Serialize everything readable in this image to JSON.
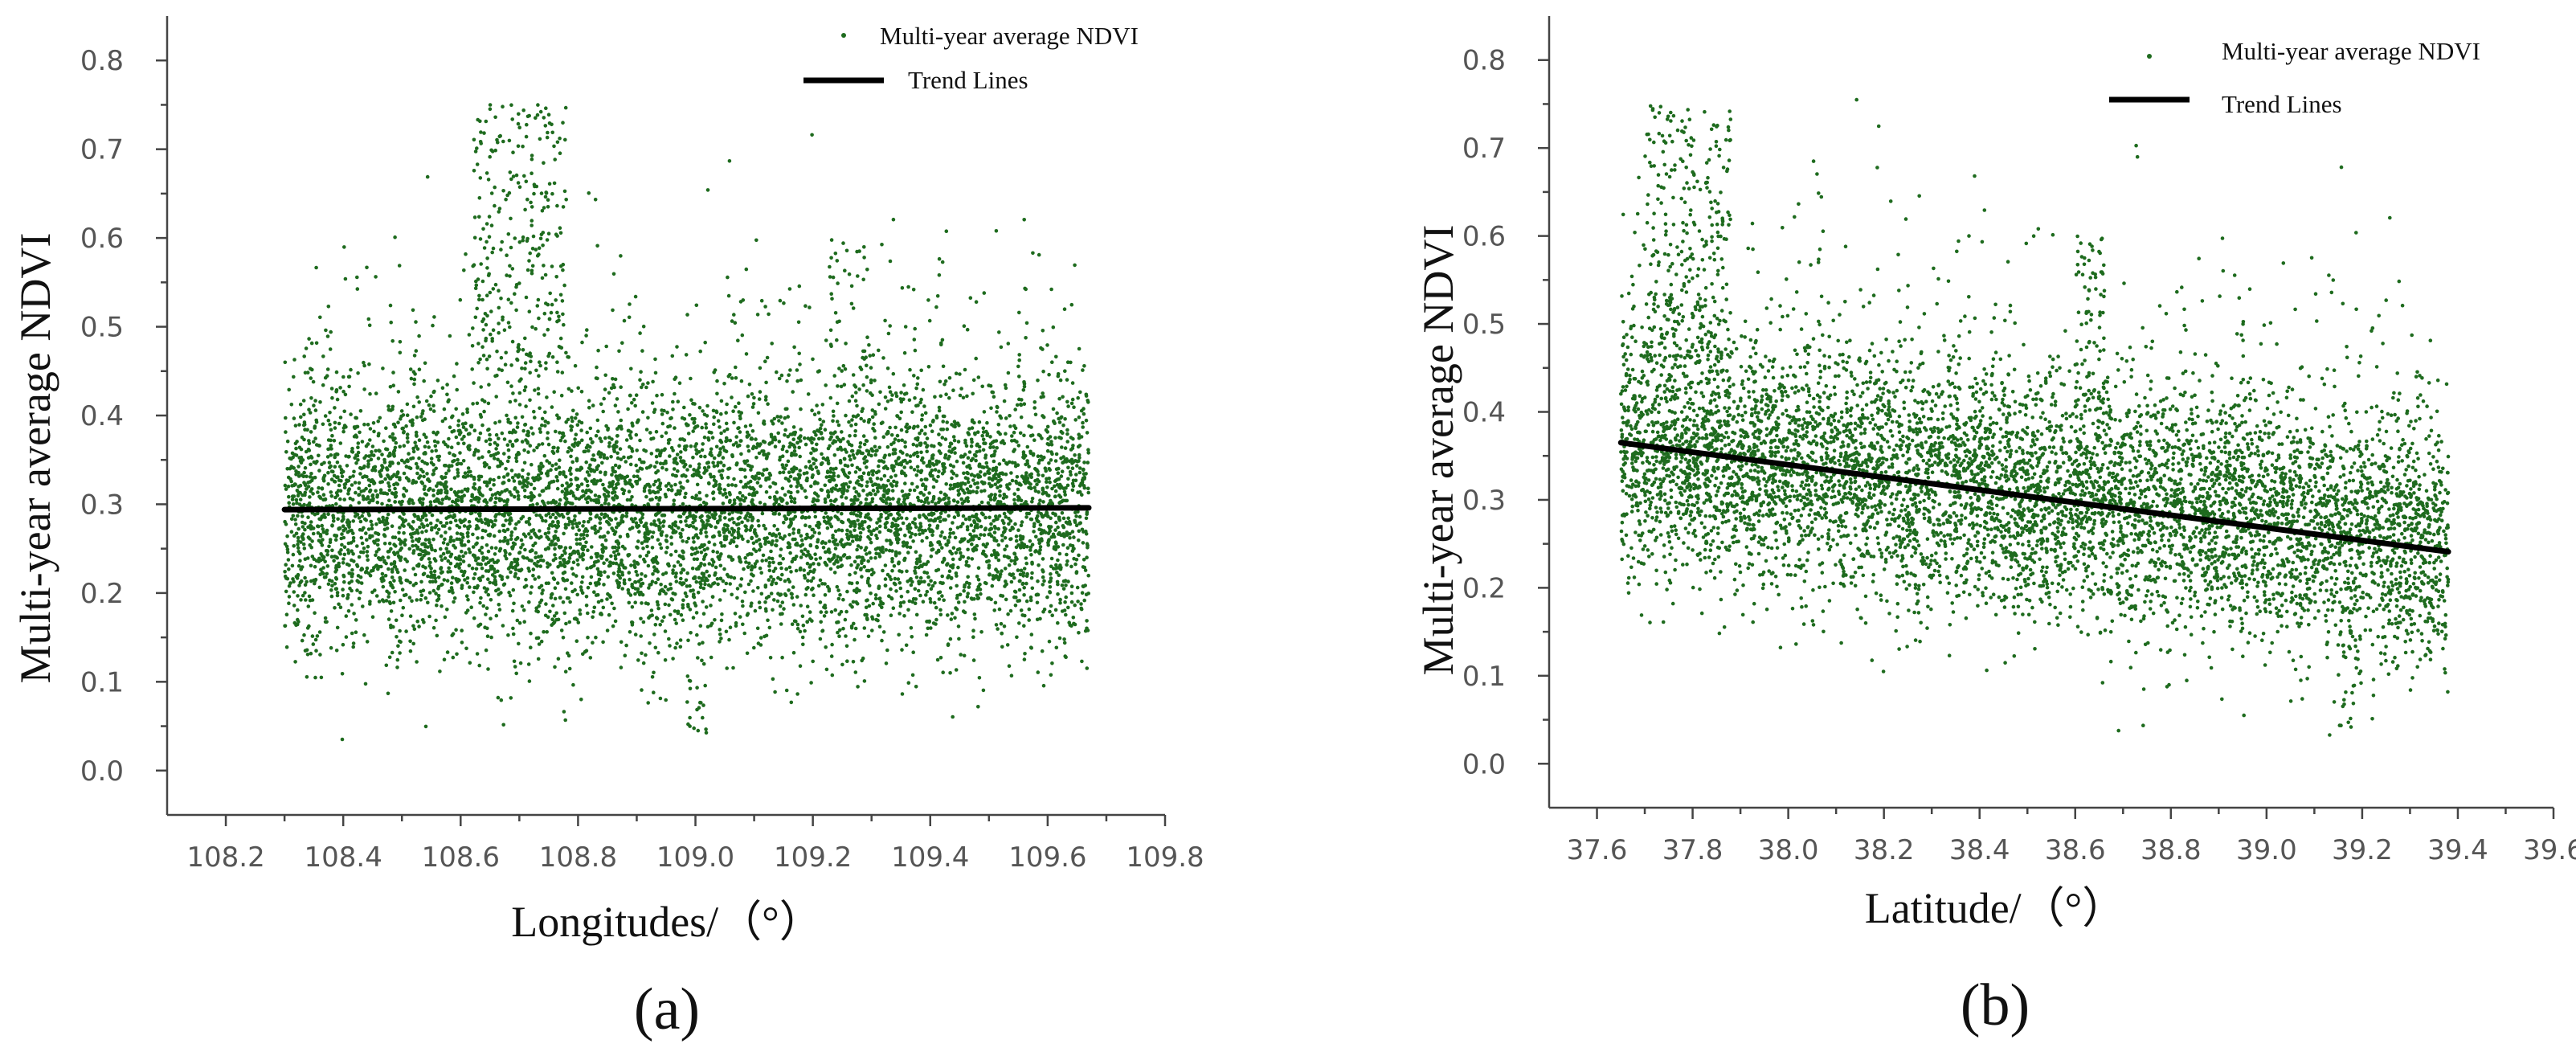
{
  "colors": {
    "points": "#1e6b1e",
    "trend": "#000000",
    "axis": "#444444"
  },
  "chart_data": [
    {
      "type": "scatter",
      "panel_label": "(a)",
      "title": "",
      "xlabel": "Longitudes/（°）",
      "ylabel": "Multi-year average NDVI",
      "xlim": [
        108.1,
        109.8
      ],
      "ylim": [
        -0.05,
        0.85
      ],
      "xticks": [
        "108.2",
        "108.4",
        "108.6",
        "108.8",
        "109.0",
        "109.2",
        "109.4",
        "109.6",
        "109.8"
      ],
      "yticks": [
        "0.0",
        "0.1",
        "0.2",
        "0.3",
        "0.4",
        "0.5",
        "0.6",
        "0.7",
        "0.8"
      ],
      "legend": {
        "position": "top-right",
        "points_label": "Multi-year average NDVI",
        "line_label": "Trend Lines"
      },
      "series": [
        {
          "name": "Multi-year average NDVI",
          "kind": "points",
          "x_range": [
            108.3,
            109.67
          ],
          "mean": 0.29,
          "spread": 0.075,
          "count": 7000,
          "hotspots": [
            {
              "x": [
                108.62,
                108.78
              ],
              "y": [
                0.45,
                0.75
              ],
              "n": 260
            },
            {
              "x": [
                109.22,
                109.3
              ],
              "y": [
                0.1,
                0.6
              ],
              "n": 120
            },
            {
              "x": [
                108.98,
                109.02
              ],
              "y": [
                0.04,
                0.12
              ],
              "n": 18
            }
          ]
        },
        {
          "name": "Trend Lines",
          "kind": "line",
          "x": [
            108.3,
            109.67
          ],
          "y": [
            0.294,
            0.296
          ]
        }
      ]
    },
    {
      "type": "scatter",
      "panel_label": "(b)",
      "title": "",
      "xlabel": "Latitude/（°）",
      "ylabel": "Multi-year average NDVI",
      "xlim": [
        37.5,
        39.6
      ],
      "ylim": [
        -0.05,
        0.85
      ],
      "xticks": [
        "37.6",
        "37.8",
        "38.0",
        "38.2",
        "38.4",
        "38.6",
        "38.8",
        "39.0",
        "39.2",
        "39.4",
        "39.6"
      ],
      "yticks": [
        "0.0",
        "0.1",
        "0.2",
        "0.3",
        "0.4",
        "0.5",
        "0.6",
        "0.7",
        "0.8"
      ],
      "legend": {
        "position": "top-right",
        "points_label": "Multi-year average NDVI",
        "line_label": "Trend Lines"
      },
      "series": [
        {
          "name": "Multi-year average NDVI",
          "kind": "points",
          "x_range": [
            37.65,
            39.38
          ],
          "mean_start": 0.36,
          "mean_end": 0.25,
          "spread": 0.07,
          "count": 7000,
          "hotspots": [
            {
              "x": [
                37.7,
                37.88
              ],
              "y": [
                0.45,
                0.75
              ],
              "n": 260
            },
            {
              "x": [
                38.6,
                38.66
              ],
              "y": [
                0.4,
                0.6
              ],
              "n": 70
            },
            {
              "x": [
                39.15,
                39.2
              ],
              "y": [
                0.04,
                0.15
              ],
              "n": 24
            }
          ]
        },
        {
          "name": "Trend Lines",
          "kind": "line",
          "x": [
            37.65,
            39.38
          ],
          "y": [
            0.365,
            0.241
          ]
        }
      ]
    }
  ]
}
